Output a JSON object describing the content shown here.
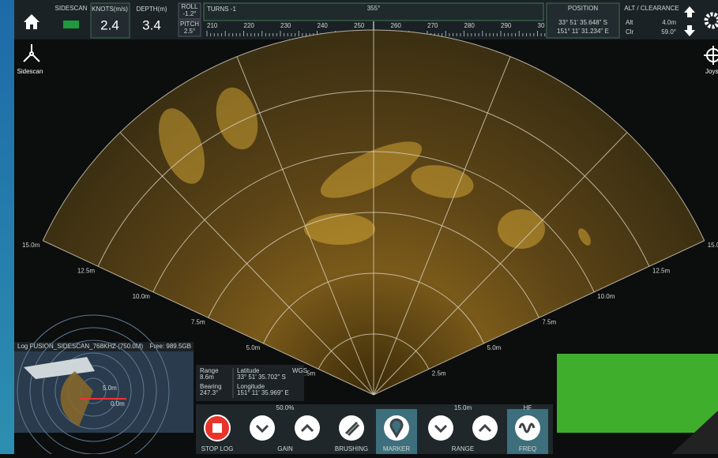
{
  "top_bar": {
    "status_label": "SIDESCAN",
    "speed_label": "KNOTS(m/s)",
    "speed_value": "2.4",
    "depth_label": "DEPTH(m)",
    "depth_value": "3.4",
    "roll_label": "ROLL",
    "roll_value": "-1.2°",
    "pitch_label": "PITCH",
    "pitch_value": "2.5°",
    "turns": "TURNS -1",
    "heading": "355°",
    "compass_ticks": [
      "210",
      "220",
      "230",
      "240",
      "250",
      "260",
      "270",
      "280",
      "290",
      "30"
    ],
    "position_label": "POSITION",
    "latitude": "33° 51' 35.648\" S",
    "longitude": "151° 11' 31.234\" E",
    "alt_title": "ALT / CLEARANCE",
    "alt_label": "Alt",
    "alt_value": "4.0m",
    "clr_label": "Clr",
    "clr_value": "59.0°"
  },
  "left_mode": "Sidescan",
  "right_mode": "Joys",
  "range_labels": [
    "2.5m",
    "5.0m",
    "7.5m",
    "10.0m",
    "12.5m",
    "15.0m"
  ],
  "minimap": {
    "title": "Log FUSION_SIDESCAN_768KHZ (750.0M)",
    "free": "Free: 989.5GB",
    "range": "5.0m",
    "target": "0.0m"
  },
  "cursor_info": {
    "range_label": "Range",
    "range_value": "8.6m",
    "bearing_label": "Bearing",
    "bearing_value": "247.3°",
    "lat_label": "Latitude",
    "lat_value": "33° 51' 35.702\" S",
    "lon_label": "Longitude",
    "lon_value": "151° 11' 35.969\" E",
    "tag": "WGS"
  },
  "controls": {
    "gain_value": "50.0%",
    "range_value": "15.0m",
    "freq_value": "HF",
    "buttons": [
      "STOP LOG",
      "GAIN",
      "BRUSHING",
      "MARKER",
      "RANGE",
      "FREQ"
    ]
  }
}
